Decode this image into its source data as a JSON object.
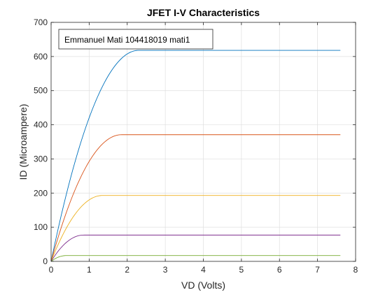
{
  "chart_data": {
    "type": "line",
    "title": "JFET I-V Characteristics",
    "xlabel": "VD (Volts)",
    "ylabel": "ID (Microampere)",
    "xlim": [
      0,
      8
    ],
    "ylim": [
      0,
      700
    ],
    "xticks": [
      0,
      1,
      2,
      3,
      4,
      5,
      6,
      7,
      8
    ],
    "yticks": [
      0,
      100,
      200,
      300,
      400,
      500,
      600,
      700
    ],
    "grid": true,
    "legend_position": "top-left",
    "annotation": "Emmanuel Mati 104418019 mati1",
    "x_max_plotted": 7.6,
    "series": [
      {
        "color": "#0072BD",
        "vsat": 2.3,
        "isat": 618
      },
      {
        "color": "#D95319",
        "vsat": 1.85,
        "isat": 371
      },
      {
        "color": "#EDB120",
        "vsat": 1.35,
        "isat": 193
      },
      {
        "color": "#7E2F8E",
        "vsat": 0.85,
        "isat": 77
      },
      {
        "color": "#77AC30",
        "vsat": 0.4,
        "isat": 17
      }
    ]
  }
}
